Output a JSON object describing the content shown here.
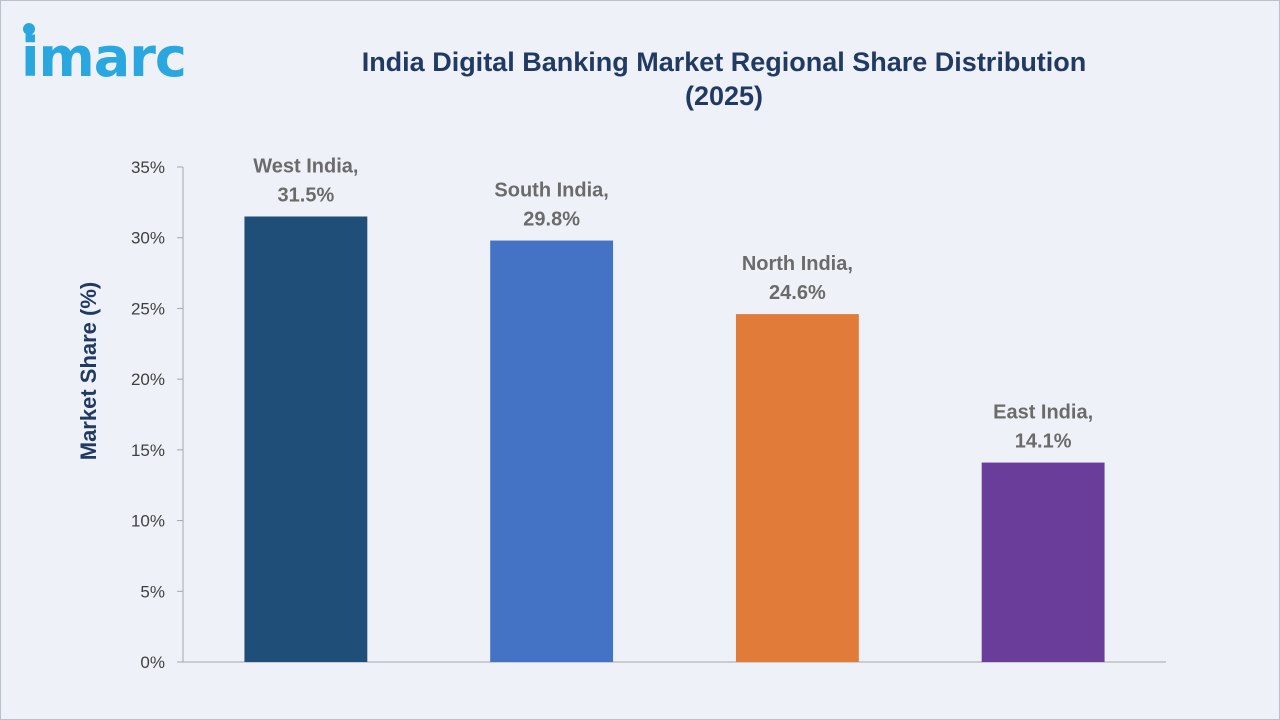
{
  "brand": {
    "logo_text": "imarc",
    "color": "#2aa7df"
  },
  "chart_data": {
    "type": "bar",
    "title_lines": [
      "India Digital Banking Market Regional Share Distribution",
      "(2025)"
    ],
    "xlabel": "",
    "ylabel": "Market Share (%)",
    "ylim": [
      0,
      35
    ],
    "yticks": [
      0,
      5,
      10,
      15,
      20,
      25,
      30,
      35
    ],
    "ytick_labels": [
      "0%",
      "5%",
      "10%",
      "15%",
      "20%",
      "25%",
      "30%",
      "35%"
    ],
    "grid": false,
    "categories": [
      "West India",
      "South India",
      "North India",
      "East India"
    ],
    "values": [
      31.5,
      29.8,
      24.6,
      14.1
    ],
    "bar_colors": [
      "#1f4e79",
      "#4472c4",
      "#e07b39",
      "#6a3d9a"
    ],
    "data_labels": [
      [
        "West India,",
        "31.5%"
      ],
      [
        "South India,",
        "29.8%"
      ],
      [
        "North India,",
        "24.6%"
      ],
      [
        "East India,",
        "14.1%"
      ]
    ]
  }
}
